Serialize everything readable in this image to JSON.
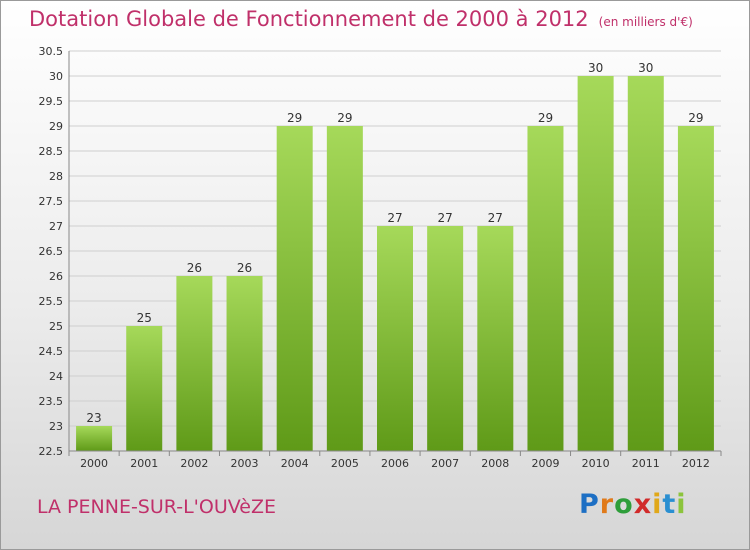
{
  "title": "Dotation Globale de Fonctionnement de 2000 à 2012",
  "subtitle": "(en milliers d'€)",
  "footer": "LA PENNE-SUR-L'OUVèZE",
  "brand": {
    "letters": [
      "P",
      "r",
      "o",
      "x",
      "i",
      "t",
      "i"
    ],
    "colors": [
      "#1d6fc4",
      "#e07a1a",
      "#2e9e3a",
      "#d12a2a",
      "#e0a81a",
      "#2a8fd1",
      "#8cc43c"
    ]
  },
  "colors": {
    "bar_light": "#a6d95a",
    "bar_dark": "#5f9a18",
    "grid": "#cfcfcf",
    "axis": "#888888"
  },
  "chart_data": {
    "type": "bar",
    "categories": [
      "2000",
      "2001",
      "2002",
      "2003",
      "2004",
      "2005",
      "2006",
      "2007",
      "2008",
      "2009",
      "2010",
      "2011",
      "2012"
    ],
    "values": [
      23,
      25,
      26,
      26,
      29,
      29,
      27,
      27,
      27,
      29,
      30,
      30,
      29
    ],
    "data_labels": [
      "23",
      "25",
      "26",
      "26",
      "29",
      "29",
      "27",
      "27",
      "27",
      "29",
      "30",
      "30",
      "29"
    ],
    "ylim": [
      22.5,
      30.5
    ],
    "yticks": [
      "22.5",
      "23",
      "23.5",
      "24",
      "24.5",
      "25",
      "25.5",
      "26",
      "26.5",
      "27",
      "27.5",
      "28",
      "28.5",
      "29",
      "29.5",
      "30",
      "30.5"
    ],
    "grid": true
  }
}
